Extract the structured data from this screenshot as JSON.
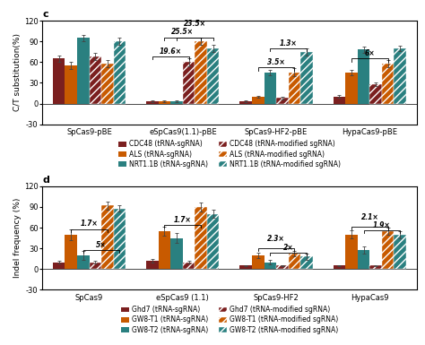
{
  "chart_data": [
    {
      "type": "bar",
      "title": "c",
      "y_label": "C/T substitution(%)",
      "categories": [
        "SpCas9-pBE",
        "eSpCas9(1.1)-pBE",
        "SpCas9-HF2-pBE",
        "HypaCas9-pBE"
      ],
      "ylim": [
        -30,
        120
      ],
      "yticks": [
        -30,
        0,
        30,
        60,
        90,
        120
      ],
      "grid": false,
      "series": [
        {
          "name": "CDC48 (tRNA-sgRNA)",
          "color": "#7B1F1F",
          "values": [
            65,
            3,
            3,
            10
          ],
          "errors": [
            5,
            1,
            1,
            2
          ]
        },
        {
          "name": "ALS (tRNA-sgRNA)",
          "color": "#C85A00",
          "values": [
            55,
            3,
            10,
            45
          ],
          "errors": [
            5,
            1,
            1,
            4
          ]
        },
        {
          "name": "NRT1.1B (tRNA-sgRNA)",
          "color": "#2A8080",
          "values": [
            95,
            3,
            45,
            78
          ],
          "errors": [
            5,
            1,
            4,
            4
          ]
        },
        {
          "name": "CDC48 (tRNA-modified sgRNA)",
          "color": "#7B1F1F",
          "values": [
            68,
            60,
            8,
            28
          ],
          "errors": [
            5,
            6,
            2,
            3
          ]
        },
        {
          "name": "ALS (tRNA-modified sgRNA)",
          "color": "#C85A00",
          "values": [
            58,
            90,
            45,
            58
          ],
          "errors": [
            5,
            5,
            6,
            5
          ]
        },
        {
          "name": "NRT1.1B (tRNA-modified sgRNA)",
          "color": "#2A8080",
          "values": [
            90,
            80,
            75,
            80
          ],
          "errors": [
            5,
            5,
            5,
            4
          ]
        }
      ],
      "annotations": [
        {
          "text": "19.6×",
          "category": "eSpCas9(1.1)-pBE",
          "from": "CDC48 (tRNA-sgRNA)",
          "to": "CDC48 (tRNA-modified sgRNA)",
          "y": 68
        },
        {
          "text": "25.5×",
          "category": "eSpCas9(1.1)-pBE",
          "from": "ALS (tRNA-sgRNA)",
          "to": "ALS (tRNA-modified sgRNA)",
          "y": 96
        },
        {
          "text": "23.5×",
          "category": "eSpCas9(1.1)-pBE",
          "from": "NRT1.1B (tRNA-sgRNA)",
          "to": "NRT1.1B (tRNA-modified sgRNA)",
          "y": 96
        },
        {
          "text": "3.5×",
          "category": "SpCas9-HF2-pBE",
          "from": "ALS (tRNA-sgRNA)",
          "to": "ALS (tRNA-modified sgRNA)",
          "y": 52
        },
        {
          "text": "1.3×",
          "category": "SpCas9-HF2-pBE",
          "from": "NRT1.1B (tRNA-sgRNA)",
          "to": "NRT1.1B (tRNA-modified sgRNA)",
          "y": 80
        },
        {
          "text": "6×",
          "category": "HypaCas9-pBE",
          "from": "ALS (tRNA-sgRNA)",
          "to": "ALS (tRNA-modified sgRNA)",
          "y": 65
        }
      ]
    },
    {
      "type": "bar",
      "title": "d",
      "y_label": "Indel frequency (%)",
      "categories": [
        "SpCas9",
        "eSpCas9 (1.1)",
        "SpCas9-HF2",
        "HypaCas9"
      ],
      "ylim": [
        -30,
        120
      ],
      "yticks": [
        -30,
        0,
        30,
        60,
        90,
        120
      ],
      "grid": false,
      "series": [
        {
          "name": "Ghd7 (tRNA-sgRNA)",
          "color": "#7B1F1F",
          "values": [
            10,
            12,
            5,
            5
          ],
          "errors": [
            2,
            3,
            1,
            1
          ]
        },
        {
          "name": "GW8-T1 (tRNA-sgRNA)",
          "color": "#C85A00",
          "values": [
            50,
            55,
            20,
            50
          ],
          "errors": [
            8,
            7,
            4,
            6
          ]
        },
        {
          "name": "GW8-T2 (tRNA-sgRNA)",
          "color": "#2A8080",
          "values": [
            20,
            45,
            10,
            28
          ],
          "errors": [
            6,
            7,
            3,
            5
          ]
        },
        {
          "name": "Ghd7 (tRNA-modified sgRNA)",
          "color": "#7B1F1F",
          "values": [
            10,
            10,
            5,
            5
          ],
          "errors": [
            2,
            2,
            1,
            1
          ]
        },
        {
          "name": "GW8-T1 (tRNA-modified sgRNA)",
          "color": "#C85A00",
          "values": [
            92,
            90,
            23,
            55
          ],
          "errors": [
            6,
            6,
            4,
            5
          ]
        },
        {
          "name": "GW8-T2 (tRNA-modified sgRNA)",
          "color": "#2A8080",
          "values": [
            88,
            80,
            18,
            50
          ],
          "errors": [
            5,
            6,
            4,
            5
          ]
        }
      ],
      "annotations": [
        {
          "text": "5×",
          "category": "SpCas9",
          "from": "GW8-T2 (tRNA-sgRNA)",
          "to": "GW8-T2 (tRNA-modified sgRNA)",
          "y": 28
        },
        {
          "text": "1.7×",
          "category": "SpCas9",
          "from": "GW8-T1 (tRNA-sgRNA)",
          "to": "GW8-T1 (tRNA-modified sgRNA)",
          "y": 58
        },
        {
          "text": "1.7×",
          "category": "eSpCas9 (1.1)",
          "from": "GW8-T1 (tRNA-sgRNA)",
          "to": "GW8-T1 (tRNA-modified sgRNA)",
          "y": 64
        },
        {
          "text": "2.3×",
          "category": "SpCas9-HF2",
          "from": "GW8-T1 (tRNA-sgRNA)",
          "to": "GW8-T1 (tRNA-modified sgRNA)",
          "y": 30
        },
        {
          "text": "2×",
          "category": "SpCas9-HF2",
          "from": "GW8-T2 (tRNA-sgRNA)",
          "to": "GW8-T2 (tRNA-modified sgRNA)",
          "y": 24
        },
        {
          "text": "2.1×",
          "category": "HypaCas9",
          "from": "GW8-T1 (tRNA-sgRNA)",
          "to": "GW8-T1 (tRNA-modified sgRNA)",
          "y": 62
        },
        {
          "text": "1.9×",
          "category": "HypaCas9",
          "from": "GW8-T2 (tRNA-sgRNA)",
          "to": "GW8-T2 (tRNA-modified sgRNA)",
          "y": 56
        }
      ]
    }
  ]
}
